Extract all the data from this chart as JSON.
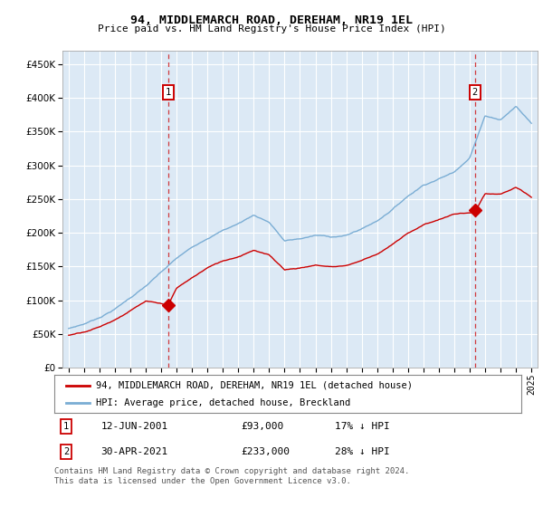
{
  "title": "94, MIDDLEMARCH ROAD, DEREHAM, NR19 1EL",
  "subtitle": "Price paid vs. HM Land Registry's House Price Index (HPI)",
  "legend_property": "94, MIDDLEMARCH ROAD, DEREHAM, NR19 1EL (detached house)",
  "legend_hpi": "HPI: Average price, detached house, Breckland",
  "footnote": "Contains HM Land Registry data © Crown copyright and database right 2024.\nThis data is licensed under the Open Government Licence v3.0.",
  "sale1_date": "12-JUN-2001",
  "sale1_price": "£93,000",
  "sale1_hpi": "17% ↓ HPI",
  "sale2_date": "30-APR-2021",
  "sale2_price": "£233,000",
  "sale2_hpi": "28% ↓ HPI",
  "sale1_x": 2001.45,
  "sale1_y": 93000,
  "sale2_x": 2021.33,
  "sale2_y": 233000,
  "hpi_color": "#7aadd4",
  "property_color": "#cc0000",
  "sale_marker_color": "#cc0000",
  "vline_color": "#cc0000",
  "plot_bg": "#dce9f5",
  "ylim": [
    0,
    470000
  ],
  "xlim": [
    1994.6,
    2025.4
  ],
  "yticks": [
    0,
    50000,
    100000,
    150000,
    200000,
    250000,
    300000,
    350000,
    400000,
    450000
  ],
  "xticks": [
    1995,
    1996,
    1997,
    1998,
    1999,
    2000,
    2001,
    2002,
    2003,
    2004,
    2005,
    2006,
    2007,
    2008,
    2009,
    2010,
    2011,
    2012,
    2013,
    2014,
    2015,
    2016,
    2017,
    2018,
    2019,
    2020,
    2021,
    2022,
    2023,
    2024,
    2025
  ],
  "hpi_knots_x": [
    1995,
    1996,
    1997,
    1998,
    1999,
    2000,
    2001,
    2002,
    2003,
    2004,
    2005,
    2006,
    2007,
    2008,
    2009,
    2010,
    2011,
    2012,
    2013,
    2014,
    2015,
    2016,
    2017,
    2018,
    2019,
    2020,
    2021,
    2022,
    2023,
    2024,
    2025
  ],
  "hpi_knots_y": [
    58000,
    65000,
    75000,
    88000,
    105000,
    122000,
    142000,
    162000,
    178000,
    193000,
    205000,
    215000,
    228000,
    218000,
    190000,
    193000,
    198000,
    196000,
    198000,
    208000,
    220000,
    238000,
    258000,
    275000,
    285000,
    295000,
    318000,
    380000,
    375000,
    395000,
    370000
  ],
  "prop_knots_x": [
    1995,
    1996,
    1997,
    1998,
    1999,
    2000,
    2001.45,
    2002,
    2003,
    2004,
    2005,
    2006,
    2007,
    2008,
    2009,
    2010,
    2011,
    2012,
    2013,
    2014,
    2015,
    2016,
    2017,
    2018,
    2019,
    2020,
    2021.33,
    2022,
    2023,
    2024,
    2025
  ],
  "prop_knots_y": [
    48000,
    54000,
    62000,
    73000,
    87000,
    100000,
    93000,
    118000,
    133000,
    148000,
    158000,
    165000,
    176000,
    168000,
    147000,
    150000,
    154000,
    152000,
    154000,
    162000,
    172000,
    186000,
    202000,
    215000,
    223000,
    231000,
    233000,
    260000,
    258000,
    268000,
    252000
  ]
}
